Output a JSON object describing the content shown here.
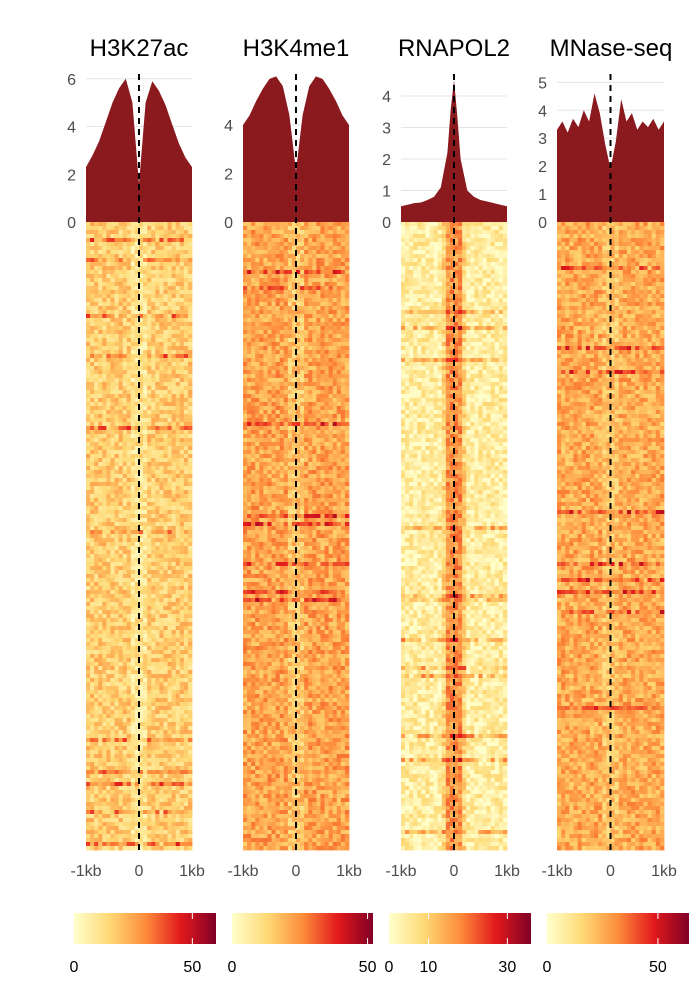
{
  "chart_data": [
    {
      "type": "area",
      "title": "H3K27ac",
      "xlabel": "",
      "ylabel": "",
      "x_tick_labels": [
        "-1kb",
        "0",
        "1kb"
      ],
      "x": [
        -1000,
        -875,
        -750,
        -625,
        -500,
        -375,
        -250,
        -125,
        0,
        125,
        250,
        375,
        500,
        625,
        750,
        875,
        1000
      ],
      "profile": [
        2.3,
        2.8,
        3.4,
        4.2,
        5.0,
        5.6,
        6.0,
        5.0,
        1.6,
        5.0,
        5.9,
        5.5,
        4.9,
        4.1,
        3.3,
        2.7,
        2.3
      ],
      "ylim": [
        0,
        6.2
      ],
      "y_ticks": [
        0,
        2,
        4,
        6
      ],
      "grid": true,
      "center_line": 0,
      "heatmap": {
        "rows": 630,
        "signal": "broad, depleted at center"
      },
      "colorbar": {
        "min": 0,
        "max": 60,
        "ticks": [
          0,
          50
        ],
        "palette": [
          "#ffffcc",
          "#fed976",
          "#fd8d3c",
          "#e31a1c",
          "#800026"
        ]
      }
    },
    {
      "type": "area",
      "title": "H3K4me1",
      "xlabel": "",
      "ylabel": "",
      "x_tick_labels": [
        "-1kb",
        "0",
        "1kb"
      ],
      "x": [
        -1000,
        -875,
        -750,
        -625,
        -500,
        -375,
        -250,
        -125,
        0,
        125,
        250,
        375,
        500,
        625,
        750,
        875,
        1000
      ],
      "profile": [
        4.0,
        4.4,
        5.0,
        5.5,
        5.9,
        6.0,
        5.6,
        4.4,
        2.1,
        4.4,
        5.6,
        6.0,
        5.9,
        5.5,
        5.0,
        4.4,
        4.0
      ],
      "ylim": [
        0,
        6.1
      ],
      "y_ticks": [
        0,
        2,
        4
      ],
      "grid": true,
      "center_line": 0,
      "heatmap": {
        "rows": 630,
        "signal": "broad, depleted at center"
      },
      "colorbar": {
        "min": 0,
        "max": 52,
        "ticks": [
          0,
          50
        ],
        "palette": [
          "#ffffcc",
          "#fed976",
          "#fd8d3c",
          "#e31a1c",
          "#800026"
        ]
      }
    },
    {
      "type": "area",
      "title": "RNAPOL2",
      "xlabel": "",
      "ylabel": "",
      "x_tick_labels": [
        "-1kb",
        "0",
        "1kb"
      ],
      "x": [
        -1000,
        -875,
        -750,
        -625,
        -500,
        -375,
        -250,
        -125,
        -60,
        0,
        60,
        125,
        250,
        375,
        500,
        625,
        750,
        875,
        1000
      ],
      "profile": [
        0.5,
        0.55,
        0.6,
        0.62,
        0.7,
        0.8,
        1.1,
        2.2,
        3.6,
        4.5,
        3.4,
        2.0,
        1.0,
        0.8,
        0.7,
        0.65,
        0.6,
        0.55,
        0.5
      ],
      "ylim": [
        0,
        4.7
      ],
      "y_ticks": [
        0,
        1,
        2,
        3,
        4
      ],
      "grid": true,
      "center_line": 0,
      "heatmap": {
        "rows": 630,
        "signal": "sharp peak at center"
      },
      "colorbar": {
        "min": 0,
        "max": 36,
        "ticks": [
          0,
          10,
          30
        ],
        "palette": [
          "#ffffcc",
          "#fed976",
          "#fd8d3c",
          "#e31a1c",
          "#800026"
        ]
      }
    },
    {
      "type": "area",
      "title": "MNase-seq",
      "xlabel": "",
      "ylabel": "",
      "x_tick_labels": [
        "-1kb",
        "0",
        "1kb"
      ],
      "x": [
        -1000,
        -900,
        -800,
        -700,
        -600,
        -500,
        -400,
        -300,
        -200,
        -100,
        0,
        100,
        200,
        300,
        400,
        500,
        600,
        700,
        800,
        900,
        1000
      ],
      "profile": [
        3.3,
        3.6,
        3.2,
        3.7,
        3.4,
        4.0,
        3.6,
        4.6,
        3.9,
        2.8,
        1.9,
        2.9,
        4.4,
        3.6,
        3.9,
        3.3,
        3.6,
        3.4,
        3.7,
        3.3,
        3.6
      ],
      "ylim": [
        0,
        5.3
      ],
      "y_ticks": [
        0,
        1,
        2,
        3,
        4,
        5
      ],
      "grid": true,
      "center_line": 0,
      "heatmap": {
        "rows": 630,
        "signal": "nucleosome-depleted center"
      },
      "colorbar": {
        "min": 0,
        "max": 64,
        "ticks": [
          0,
          50
        ],
        "palette": [
          "#ffffcc",
          "#fed976",
          "#fd8d3c",
          "#e31a1c",
          "#800026"
        ]
      }
    }
  ],
  "colors": {
    "profile_fill": "#8b1a1f",
    "grid": "#e5e5e5",
    "center_line": "#000000"
  }
}
